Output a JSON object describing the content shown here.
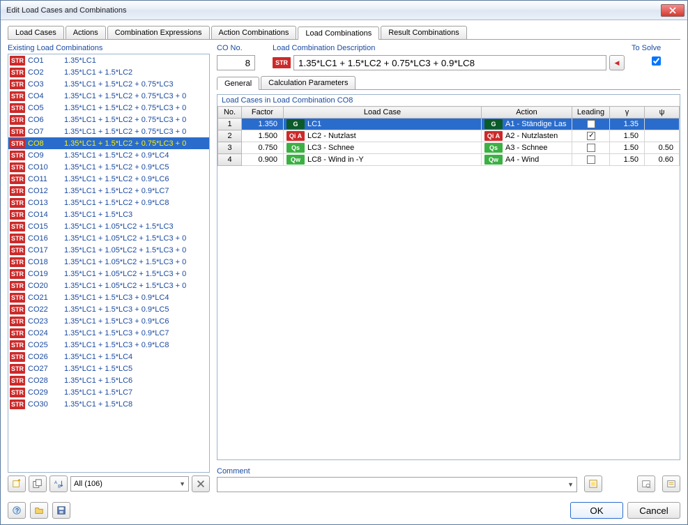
{
  "window_title": "Edit Load Cases and Combinations",
  "top_tabs": [
    "Load Cases",
    "Actions",
    "Combination Expressions",
    "Action Combinations",
    "Load Combinations",
    "Result Combinations"
  ],
  "top_tab_active": 4,
  "existing_title": "Existing Load Combinations",
  "combos": [
    {
      "tag": "STR",
      "id": "CO1",
      "expr": "1.35*LC1"
    },
    {
      "tag": "STR",
      "id": "CO2",
      "expr": "1.35*LC1 + 1.5*LC2"
    },
    {
      "tag": "STR",
      "id": "CO3",
      "expr": "1.35*LC1 + 1.5*LC2 + 0.75*LC3"
    },
    {
      "tag": "STR",
      "id": "CO4",
      "expr": "1.35*LC1 + 1.5*LC2 + 0.75*LC3 + 0"
    },
    {
      "tag": "STR",
      "id": "CO5",
      "expr": "1.35*LC1 + 1.5*LC2 + 0.75*LC3 + 0"
    },
    {
      "tag": "STR",
      "id": "CO6",
      "expr": "1.35*LC1 + 1.5*LC2 + 0.75*LC3 + 0"
    },
    {
      "tag": "STR",
      "id": "CO7",
      "expr": "1.35*LC1 + 1.5*LC2 + 0.75*LC3 + 0"
    },
    {
      "tag": "STR",
      "id": "CO8",
      "expr": "1.35*LC1 + 1.5*LC2 + 0.75*LC3 + 0",
      "selected": true
    },
    {
      "tag": "STR",
      "id": "CO9",
      "expr": "1.35*LC1 + 1.5*LC2 + 0.9*LC4"
    },
    {
      "tag": "STR",
      "id": "CO10",
      "expr": "1.35*LC1 + 1.5*LC2 + 0.9*LC5"
    },
    {
      "tag": "STR",
      "id": "CO11",
      "expr": "1.35*LC1 + 1.5*LC2 + 0.9*LC6"
    },
    {
      "tag": "STR",
      "id": "CO12",
      "expr": "1.35*LC1 + 1.5*LC2 + 0.9*LC7"
    },
    {
      "tag": "STR",
      "id": "CO13",
      "expr": "1.35*LC1 + 1.5*LC2 + 0.9*LC8"
    },
    {
      "tag": "STR",
      "id": "CO14",
      "expr": "1.35*LC1 + 1.5*LC3"
    },
    {
      "tag": "STR",
      "id": "CO15",
      "expr": "1.35*LC1 + 1.05*LC2 + 1.5*LC3"
    },
    {
      "tag": "STR",
      "id": "CO16",
      "expr": "1.35*LC1 + 1.05*LC2 + 1.5*LC3 + 0"
    },
    {
      "tag": "STR",
      "id": "CO17",
      "expr": "1.35*LC1 + 1.05*LC2 + 1.5*LC3 + 0"
    },
    {
      "tag": "STR",
      "id": "CO18",
      "expr": "1.35*LC1 + 1.05*LC2 + 1.5*LC3 + 0"
    },
    {
      "tag": "STR",
      "id": "CO19",
      "expr": "1.35*LC1 + 1.05*LC2 + 1.5*LC3 + 0"
    },
    {
      "tag": "STR",
      "id": "CO20",
      "expr": "1.35*LC1 + 1.05*LC2 + 1.5*LC3 + 0"
    },
    {
      "tag": "STR",
      "id": "CO21",
      "expr": "1.35*LC1 + 1.5*LC3 + 0.9*LC4"
    },
    {
      "tag": "STR",
      "id": "CO22",
      "expr": "1.35*LC1 + 1.5*LC3 + 0.9*LC5"
    },
    {
      "tag": "STR",
      "id": "CO23",
      "expr": "1.35*LC1 + 1.5*LC3 + 0.9*LC6"
    },
    {
      "tag": "STR",
      "id": "CO24",
      "expr": "1.35*LC1 + 1.5*LC3 + 0.9*LC7"
    },
    {
      "tag": "STR",
      "id": "CO25",
      "expr": "1.35*LC1 + 1.5*LC3 + 0.9*LC8"
    },
    {
      "tag": "STR",
      "id": "CO26",
      "expr": "1.35*LC1 + 1.5*LC4"
    },
    {
      "tag": "STR",
      "id": "CO27",
      "expr": "1.35*LC1 + 1.5*LC5"
    },
    {
      "tag": "STR",
      "id": "CO28",
      "expr": "1.35*LC1 + 1.5*LC6"
    },
    {
      "tag": "STR",
      "id": "CO29",
      "expr": "1.35*LC1 + 1.5*LC7"
    },
    {
      "tag": "STR",
      "id": "CO30",
      "expr": "1.35*LC1 + 1.5*LC8"
    }
  ],
  "filter_label": "All (106)",
  "co_no_label": "CO No.",
  "co_no_value": "8",
  "desc_label": "Load Combination Description",
  "desc_badge": "STR",
  "desc_value": "1.35*LC1 + 1.5*LC2 + 0.75*LC3 + 0.9*LC8",
  "to_solve_label": "To Solve",
  "to_solve_checked": true,
  "sub_tabs": [
    "General",
    "Calculation Parameters"
  ],
  "sub_tab_active": 0,
  "grid_title": "Load Cases in Load Combination CO8",
  "grid_headers": {
    "no": "No.",
    "factor": "Factor",
    "loadcase": "Load Case",
    "action": "Action",
    "leading": "Leading",
    "gamma": "γ",
    "psi": "ψ"
  },
  "grid_rows": [
    {
      "no": "1",
      "factor": "1.350",
      "lc_badge": "G",
      "lc_text": "LC1",
      "act_badge": "G",
      "act_text": "A1 - Ständige Las",
      "leading": false,
      "gamma": "1.35",
      "psi": "",
      "selected": true
    },
    {
      "no": "2",
      "factor": "1.500",
      "lc_badge": "Qi A",
      "lc_text": "LC2 - Nutzlast",
      "act_badge": "Qi A",
      "act_text": "A2 - Nutzlasten",
      "leading": true,
      "gamma": "1.50",
      "psi": ""
    },
    {
      "no": "3",
      "factor": "0.750",
      "lc_badge": "Qs",
      "lc_text": "LC3 - Schnee",
      "act_badge": "Qs",
      "act_text": "A3 - Schnee",
      "leading": false,
      "gamma": "1.50",
      "psi": "0.50"
    },
    {
      "no": "4",
      "factor": "0.900",
      "lc_badge": "Qw",
      "lc_text": "LC8 - Wind in -Y",
      "act_badge": "Qw",
      "act_text": "A4 - Wind",
      "leading": false,
      "gamma": "1.50",
      "psi": "0.60"
    }
  ],
  "badge_colors": {
    "G": "#0b5a2a",
    "Qi A": "#cc2a2a",
    "Qs": "#3cb043",
    "Qw": "#3cb043"
  },
  "comment_label": "Comment",
  "ok_label": "OK",
  "cancel_label": "Cancel"
}
